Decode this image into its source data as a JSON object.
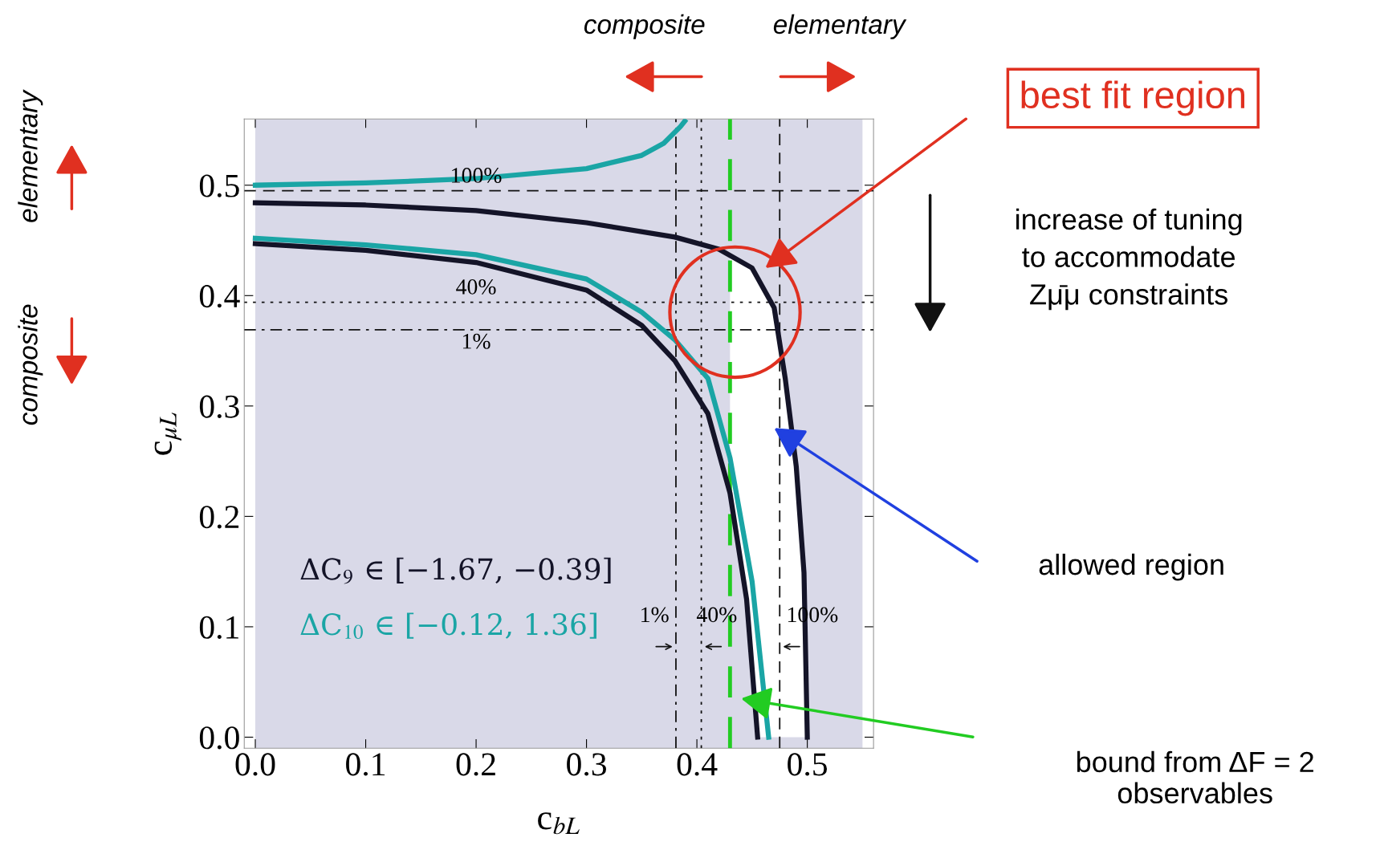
{
  "chart_data": {
    "type": "line",
    "xlabel": "c$_{bL}$",
    "ylabel": "c$_{μL}$",
    "xlim": [
      -0.01,
      0.56
    ],
    "ylim": [
      -0.01,
      0.56
    ],
    "xticks": [
      {
        "value": 0,
        "label": "0.0"
      },
      0.1,
      0.2,
      0.3,
      0.4,
      0.5
    ],
    "yticks": [
      {
        "value": 0,
        "label": "0.0"
      },
      0.1,
      0.2,
      0.3,
      0.4,
      0.5
    ],
    "grid": false,
    "legend": false,
    "series": [
      {
        "name": "ΔC$_{9}$ ∈ [−1.67, −0.39]",
        "color": "#141428",
        "x": [
          0,
          0.1,
          0.2,
          0.3,
          0.38,
          0.42,
          0.45,
          0.47,
          0.48,
          0.49,
          0.497,
          0.5
        ],
        "values": [
          0.484,
          0.482,
          0.477,
          0.466,
          0.453,
          0.442,
          0.425,
          0.389,
          0.325,
          0.245,
          0.149,
          0
        ]
      },
      {
        "color": "#141428",
        "x": [
          0,
          0.1,
          0.2,
          0.3,
          0.35,
          0.38,
          0.41,
          0.43,
          0.445,
          0.455
        ],
        "values": [
          0.447,
          0.441,
          0.43,
          0.405,
          0.373,
          0.341,
          0.293,
          0.221,
          0.125,
          0
        ]
      },
      {
        "name": "ΔC$_{10}$ ∈ [−0.12, 1.36]",
        "color": "#1aa5a5",
        "x": [
          0,
          0.1,
          0.2,
          0.3,
          0.35,
          0.37,
          0.385,
          0.389
        ],
        "values": [
          0.5,
          0.502,
          0.506,
          0.515,
          0.527,
          0.538,
          0.553,
          0.558
        ]
      },
      {
        "color": "#1aa5a5",
        "x": [
          0,
          0.1,
          0.2,
          0.3,
          0.35,
          0.38,
          0.41,
          0.43,
          0.45,
          0.465
        ],
        "values": [
          0.452,
          0.446,
          0.437,
          0.415,
          0.385,
          0.36,
          0.325,
          0.253,
          0.141,
          0
        ]
      }
    ],
    "bands": [
      {
        "axis": "x",
        "from": 0,
        "to": 0.55,
        "color": "#d9d9e8"
      }
    ],
    "ref_lines": [
      {
        "axis": "y",
        "value": 0.495,
        "line_style": "dashed"
      },
      {
        "axis": "y",
        "value": 0.394,
        "line_style": "dotted"
      },
      {
        "axis": "y",
        "value": 0.369,
        "line_style": "dashdot"
      },
      {
        "axis": "x",
        "value": 0.381,
        "line_style": "dashdot"
      },
      {
        "axis": "x",
        "value": 0.404,
        "line_style": "dotted"
      },
      {
        "axis": "x",
        "value": 0.475,
        "line_style": "dashed"
      },
      {
        "axis": "x",
        "value": 0.43,
        "line_style": "dashed",
        "color": "#22cc22"
      }
    ],
    "annotations": [
      "best fit region",
      "allowed region",
      "composite",
      "elementary",
      "elementary",
      "composite",
      "increase of tuning\nto accommodate\nZμ̄μ constraints",
      "bound from ΔF = 2\nobservables",
      {
        "text": "100%",
        "x": 0.2,
        "y": 0.495
      },
      {
        "text": "40%",
        "x": 0.2,
        "y": 0.394
      },
      {
        "text": "1%",
        "x": 0.2,
        "y": 0.369
      },
      {
        "text": "1%",
        "x": 0.381,
        "y": 0.1
      },
      {
        "text": "40%",
        "x": 0.404,
        "y": 0.1
      },
      {
        "text": "100%",
        "x": 0.475,
        "y": 0.1
      }
    ]
  }
}
